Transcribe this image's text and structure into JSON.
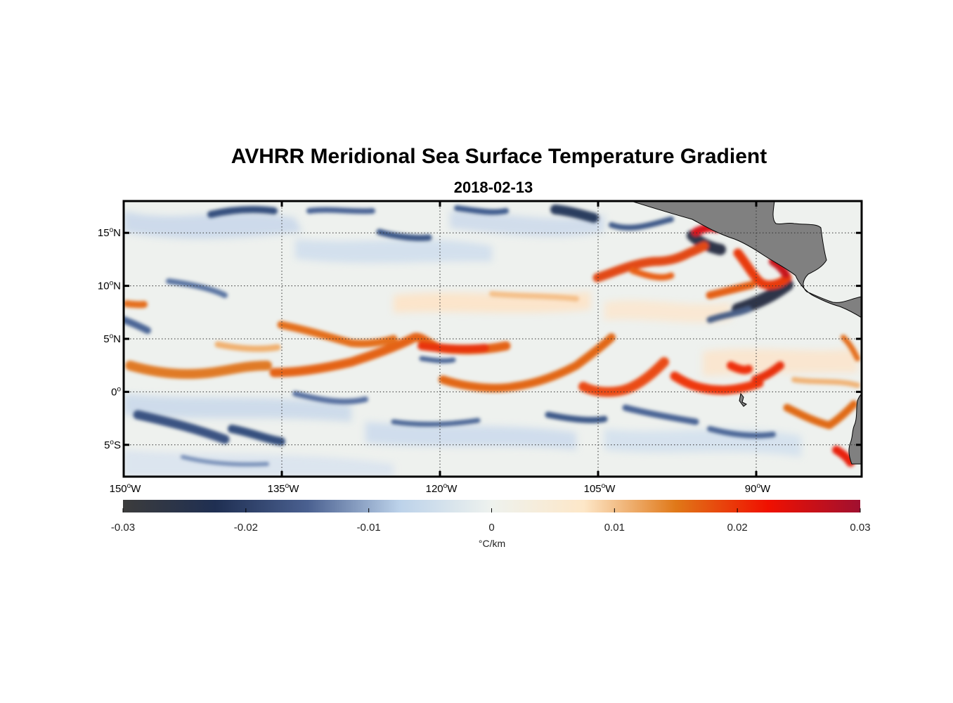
{
  "title": "AVHRR Meridional Sea Surface Temperature Gradient",
  "subtitle": "2018-02-13",
  "map": {
    "lon_range": [
      -150,
      -80
    ],
    "lat_range": [
      -8,
      18
    ],
    "grid": true,
    "land_color": "#808080",
    "y_ticks": [
      {
        "value": 15,
        "label": "15",
        "sup": "o",
        "hemi": "N"
      },
      {
        "value": 10,
        "label": "10",
        "sup": "o",
        "hemi": "N"
      },
      {
        "value": 5,
        "label": "5",
        "sup": "o",
        "hemi": "N"
      },
      {
        "value": 0,
        "label": "0",
        "sup": "o",
        "hemi": ""
      },
      {
        "value": -5,
        "label": "5",
        "sup": "o",
        "hemi": "S"
      }
    ],
    "x_ticks": [
      {
        "value": -150,
        "label": "150",
        "sup": "o",
        "hemi": "W"
      },
      {
        "value": -135,
        "label": "135",
        "sup": "o",
        "hemi": "W"
      },
      {
        "value": -120,
        "label": "120",
        "sup": "o",
        "hemi": "W"
      },
      {
        "value": -105,
        "label": "105",
        "sup": "o",
        "hemi": "W"
      },
      {
        "value": -90,
        "label": "90",
        "sup": "o",
        "hemi": "W"
      }
    ]
  },
  "colorbar": {
    "range": [
      -0.03,
      0.03
    ],
    "ticks": [
      {
        "value": -0.03,
        "label": "-0.03"
      },
      {
        "value": -0.02,
        "label": "-0.02"
      },
      {
        "value": -0.01,
        "label": "-0.01"
      },
      {
        "value": 0,
        "label": "0"
      },
      {
        "value": 0.01,
        "label": "0.01"
      },
      {
        "value": 0.02,
        "label": "0.02"
      },
      {
        "value": 0.03,
        "label": "0.03"
      }
    ],
    "unit_label": "°C/km",
    "colors": [
      "#3c3c3c",
      "#1f2f52",
      "#4a6090",
      "#bcd2ea",
      "#eef2ee",
      "#fde7c8",
      "#e07818",
      "#f01000",
      "#a01030"
    ]
  }
}
